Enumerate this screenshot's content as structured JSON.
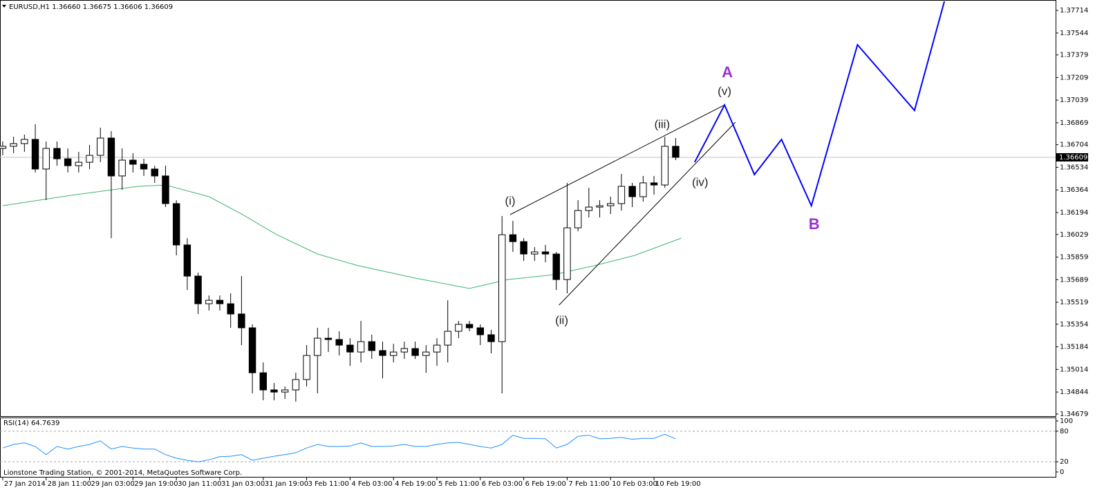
{
  "chart_data": [
    {
      "type": "candlestick",
      "title": "EURUSD,H1 1.36660 1.36675 1.36606 1.36609",
      "footer": "Lionstone Trading Station, © 2001-2014, MetaQuotes Software Corp.",
      "x": [
        0,
        4,
        8,
        12,
        16,
        20,
        24,
        28,
        32,
        36,
        40,
        44,
        48,
        52,
        56,
        60,
        64,
        68,
        72,
        76,
        80,
        84,
        88,
        92,
        96,
        100,
        104,
        108,
        112,
        116,
        120,
        124,
        128,
        132,
        136,
        140,
        144,
        148,
        152,
        156,
        160,
        164,
        168,
        172,
        176,
        180,
        184,
        188,
        192,
        196,
        200,
        204,
        208,
        212,
        216,
        220,
        224,
        228,
        232,
        236,
        240,
        244,
        248
      ],
      "open": [
        1.36676,
        1.36692,
        1.36712,
        1.36744,
        1.36521,
        1.36676,
        1.36598,
        1.36546,
        1.36572,
        1.36624,
        1.36754,
        1.36469,
        1.36588,
        1.36557,
        1.36521,
        1.36469,
        1.36261,
        1.3595,
        1.35716,
        1.35508,
        1.35534,
        1.35508,
        1.35431,
        1.35327,
        1.34989,
        1.3486,
        1.34844,
        1.3486,
        1.34938,
        1.35119,
        1.35249,
        1.35239,
        1.35197,
        1.35145,
        1.35223,
        1.35156,
        1.35119,
        1.35145,
        1.35171,
        1.35119,
        1.35145,
        1.35197,
        1.35301,
        1.35353,
        1.35327,
        1.35275,
        1.35223,
        1.36027,
        1.35975,
        1.35882,
        1.35898,
        1.35882,
        1.3569,
        1.36079,
        1.36209,
        1.36235,
        1.36245,
        1.36261,
        1.36391,
        1.36313,
        1.36417,
        1.36401,
        1.36692
      ],
      "high": [
        1.36728,
        1.36764,
        1.3678,
        1.36858,
        1.36728,
        1.36728,
        1.36676,
        1.3665,
        1.36702,
        1.36832,
        1.36806,
        1.36676,
        1.3664,
        1.36598,
        1.36546,
        1.36546,
        1.36287,
        1.36001,
        1.35742,
        1.3557,
        1.3557,
        1.35586,
        1.35716,
        1.35353,
        1.35067,
        1.34912,
        1.34886,
        1.34989,
        1.35197,
        1.35327,
        1.35327,
        1.35301,
        1.35249,
        1.35379,
        1.35275,
        1.35223,
        1.35207,
        1.35223,
        1.35223,
        1.35197,
        1.35249,
        1.35534,
        1.35379,
        1.35379,
        1.35353,
        1.35312,
        1.36168,
        1.36131,
        1.36001,
        1.35934,
        1.3595,
        1.35898,
        1.36417,
        1.36287,
        1.3638,
        1.36287,
        1.36313,
        1.36484,
        1.36417,
        1.36469,
        1.36469,
        1.36764,
        1.36754
      ],
      "low": [
        1.36624,
        1.3664,
        1.3665,
        1.36495,
        1.36287,
        1.36546,
        1.36495,
        1.36495,
        1.36521,
        1.36572,
        1.36001,
        1.36365,
        1.36495,
        1.36469,
        1.36417,
        1.36235,
        1.35872,
        1.35612,
        1.35431,
        1.35457,
        1.35457,
        1.35327,
        1.35197,
        1.34834,
        1.34782,
        1.34782,
        1.34792,
        1.34772,
        1.34886,
        1.34834,
        1.35145,
        1.35119,
        1.35041,
        1.35067,
        1.35093,
        1.34948,
        1.35067,
        1.35093,
        1.35093,
        1.34989,
        1.35041,
        1.35067,
        1.35249,
        1.35301,
        1.35197,
        1.35135,
        1.34834,
        1.35898,
        1.3583,
        1.3583,
        1.3582,
        1.35612,
        1.35586,
        1.36053,
        1.36157,
        1.36157,
        1.36183,
        1.36209,
        1.36235,
        1.36276,
        1.36328,
        1.3638,
        1.36588
      ],
      "close": [
        1.36692,
        1.36712,
        1.36744,
        1.36521,
        1.36676,
        1.36598,
        1.36546,
        1.36572,
        1.36624,
        1.36754,
        1.36469,
        1.36588,
        1.36557,
        1.36521,
        1.36469,
        1.36261,
        1.3595,
        1.35716,
        1.35508,
        1.35534,
        1.35508,
        1.35431,
        1.35327,
        1.34989,
        1.3486,
        1.34844,
        1.3486,
        1.34938,
        1.35119,
        1.35249,
        1.35239,
        1.35197,
        1.35145,
        1.35223,
        1.35156,
        1.35119,
        1.35145,
        1.35171,
        1.35119,
        1.35145,
        1.35197,
        1.35301,
        1.35353,
        1.35327,
        1.35275,
        1.35223,
        1.36027,
        1.35975,
        1.35882,
        1.35898,
        1.35882,
        1.3569,
        1.36079,
        1.36209,
        1.36235,
        1.36245,
        1.36261,
        1.36391,
        1.36313,
        1.36417,
        1.36401,
        1.36692,
        1.36609
      ],
      "color": "#000000",
      "last_price": 1.36609,
      "xlim": [
        -1,
        388
      ],
      "xticks": [
        {
          "value": 0,
          "label": "27 Jan 2014"
        },
        {
          "value": 16,
          "label": "28 Jan 11:00"
        },
        {
          "value": 32,
          "label": "29 Jan 03:00"
        },
        {
          "value": 48,
          "label": "29 Jan 19:00"
        },
        {
          "value": 64,
          "label": "30 Jan 11:00"
        },
        {
          "value": 80,
          "label": "31 Jan 03:00"
        },
        {
          "value": 96,
          "label": "31 Jan 19:00"
        },
        {
          "value": 112,
          "label": "3 Feb 11:00"
        },
        {
          "value": 128,
          "label": "4 Feb 03:00"
        },
        {
          "value": 144,
          "label": "4 Feb 19:00"
        },
        {
          "value": 160,
          "label": "5 Feb 11:00"
        },
        {
          "value": 176,
          "label": "6 Feb 03:00"
        },
        {
          "value": 192,
          "label": "6 Feb 19:00"
        },
        {
          "value": 208,
          "label": "7 Feb 11:00"
        },
        {
          "value": 224,
          "label": "10 Feb 03:00"
        },
        {
          "value": 240,
          "label": "10 Feb 19:00"
        }
      ],
      "ylim": [
        1.34663,
        1.37792
      ],
      "yticks": [
        1.37714,
        1.37544,
        1.37379,
        1.37209,
        1.37039,
        1.36869,
        1.36704,
        1.36534,
        1.36364,
        1.36194,
        1.36029,
        1.35859,
        1.35689,
        1.35519,
        1.35354,
        1.35184,
        1.35014,
        1.34844,
        1.34679
      ],
      "ma": {
        "color": "#3cb371",
        "x": [
          0,
          25,
          50,
          60,
          76,
          88,
          101,
          116,
          131,
          152,
          172,
          186,
          203,
          218,
          233,
          250
        ],
        "values": [
          1.36245,
          1.36323,
          1.36391,
          1.36401,
          1.36313,
          1.36183,
          1.36027,
          1.35882,
          1.35794,
          1.35701,
          1.35623,
          1.3569,
          1.35726,
          1.35794,
          1.35872,
          1.36001
        ]
      },
      "projection": {
        "color": "#0000ff",
        "x": [
          255,
          266,
          277,
          287,
          298,
          315,
          336,
          347
        ],
        "values": [
          1.36572,
          1.37003,
          1.36479,
          1.36744,
          1.36245,
          1.37455,
          1.36962,
          1.37782
        ]
      },
      "trendlines": [
        {
          "x": [
            187,
            266
          ],
          "values": [
            1.36178,
            1.37003
          ]
        },
        {
          "x": [
            205,
            270
          ],
          "values": [
            1.35498,
            1.36873
          ]
        }
      ],
      "annotations": [
        {
          "text": "(i)",
          "x": 187,
          "y": 1.36276,
          "color": "#222222"
        },
        {
          "text": "(ii)",
          "x": 206,
          "y": 1.35379,
          "color": "#222222"
        },
        {
          "text": "(iii)",
          "x": 243,
          "y": 1.36853,
          "color": "#222222"
        },
        {
          "text": "(iv)",
          "x": 257,
          "y": 1.36417,
          "color": "#222222"
        },
        {
          "text": "(v)",
          "x": 266,
          "y": 1.37102,
          "color": "#222222"
        },
        {
          "text": "A",
          "x": 267,
          "y": 1.37242,
          "color": "#9b30d0"
        },
        {
          "text": "B",
          "x": 299,
          "y": 1.361,
          "color": "#9b30d0"
        }
      ]
    },
    {
      "type": "line",
      "title": "RSI(14) 64.7639",
      "x": [
        0,
        4,
        8,
        12,
        16,
        20,
        24,
        28,
        32,
        36,
        40,
        44,
        48,
        52,
        56,
        60,
        64,
        68,
        72,
        76,
        80,
        84,
        88,
        92,
        96,
        100,
        104,
        108,
        112,
        116,
        120,
        124,
        128,
        132,
        136,
        140,
        144,
        148,
        152,
        156,
        160,
        164,
        168,
        172,
        176,
        180,
        184,
        188,
        192,
        196,
        200,
        204,
        208,
        212,
        216,
        220,
        224,
        228,
        232,
        236,
        240,
        244,
        248
      ],
      "values": [
        47,
        54,
        57,
        50,
        34,
        50,
        45,
        50,
        54,
        61,
        45,
        50,
        47,
        45,
        45,
        34,
        27,
        23,
        20,
        24,
        30,
        31,
        34,
        23,
        27,
        31,
        34,
        38,
        47,
        54,
        50,
        50,
        51,
        57,
        50,
        50,
        51,
        54,
        50,
        50,
        54,
        57,
        58,
        54,
        50,
        47,
        54,
        72,
        66,
        66,
        65,
        47,
        54,
        70,
        72,
        65,
        66,
        68,
        64,
        66,
        66,
        74,
        65
      ],
      "color": "#1e90ff",
      "xlim": [
        -1,
        388
      ],
      "ylim": [
        -9.5,
        106.8
      ],
      "yticks": [
        100,
        80,
        20,
        0
      ],
      "levels": [
        20,
        80
      ]
    }
  ]
}
